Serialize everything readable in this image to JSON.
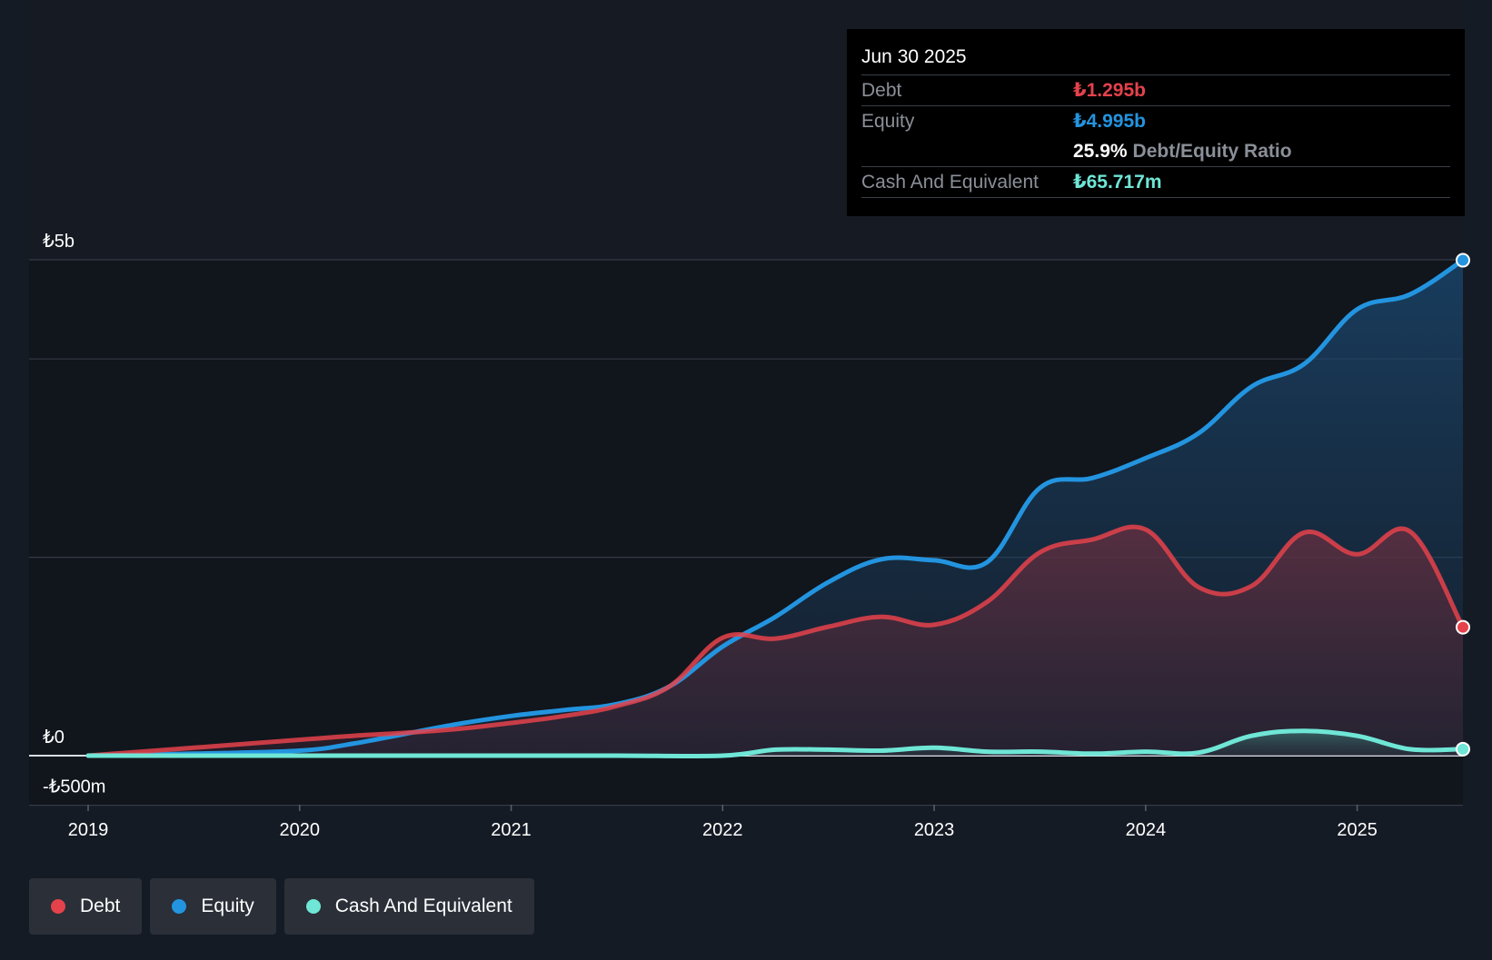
{
  "tooltip": {
    "date": "Jun 30 2025",
    "debt_label": "Debt",
    "debt_value": "₺1.295b",
    "equity_label": "Equity",
    "equity_value": "₺4.995b",
    "ratio_value": "25.9%",
    "ratio_label": "Debt/Equity Ratio",
    "cash_label": "Cash And Equivalent",
    "cash_value": "₺65.717m"
  },
  "legend": {
    "items": [
      {
        "label": "Debt",
        "color": "#e5424b"
      },
      {
        "label": "Equity",
        "color": "#2394df"
      },
      {
        "label": "Cash And Equivalent",
        "color": "#6fe6d6"
      }
    ]
  },
  "colors": {
    "debt": "#e5424b",
    "equity": "#2394df",
    "cash": "#6fe6d6",
    "background": "#151b24"
  },
  "chart_data": {
    "type": "area",
    "title": "",
    "xlabel": "",
    "ylabel": "",
    "x_ticks": [
      "2019",
      "2020",
      "2021",
      "2022",
      "2023",
      "2024",
      "2025"
    ],
    "y_tick_labels": [
      {
        "value": 5,
        "label": "₺5b"
      },
      {
        "value": 0,
        "label": "₺0"
      },
      {
        "value": -0.5,
        "label": "-₺500m"
      }
    ],
    "gridlines_at": [
      5,
      4,
      2,
      0,
      -0.5
    ],
    "ylim": [
      -0.5,
      5
    ],
    "xlim": [
      2019,
      2025.5
    ],
    "unit": "TRY billions",
    "series": [
      {
        "name": "Equity",
        "x": [
          2019.0,
          2019.5,
          2020.0,
          2020.25,
          2020.5,
          2020.75,
          2021.0,
          2021.25,
          2021.5,
          2021.75,
          2022.0,
          2022.25,
          2022.5,
          2022.75,
          2023.0,
          2023.25,
          2023.5,
          2023.75,
          2024.0,
          2024.25,
          2024.5,
          2024.75,
          2025.0,
          2025.25,
          2025.5
        ],
        "values": [
          0.0,
          0.02,
          0.05,
          0.12,
          0.22,
          0.32,
          0.4,
          0.46,
          0.52,
          0.7,
          1.1,
          1.4,
          1.75,
          1.98,
          1.97,
          1.95,
          2.7,
          2.8,
          3.0,
          3.25,
          3.72,
          3.95,
          4.5,
          4.65,
          4.995
        ]
      },
      {
        "name": "Debt",
        "x": [
          2019.0,
          2019.5,
          2020.0,
          2020.25,
          2020.5,
          2020.75,
          2021.0,
          2021.25,
          2021.5,
          2021.75,
          2022.0,
          2022.25,
          2022.5,
          2022.75,
          2023.0,
          2023.25,
          2023.5,
          2023.75,
          2024.0,
          2024.25,
          2024.5,
          2024.75,
          2025.0,
          2025.25,
          2025.5
        ],
        "values": [
          0.0,
          0.08,
          0.16,
          0.2,
          0.23,
          0.27,
          0.33,
          0.4,
          0.5,
          0.7,
          1.19,
          1.18,
          1.3,
          1.4,
          1.32,
          1.55,
          2.05,
          2.18,
          2.28,
          1.7,
          1.71,
          2.25,
          2.03,
          2.26,
          1.295
        ]
      },
      {
        "name": "Cash And Equivalent",
        "x": [
          2019.0,
          2019.5,
          2020.0,
          2020.5,
          2021.0,
          2021.5,
          2022.0,
          2022.25,
          2022.5,
          2022.75,
          2023.0,
          2023.25,
          2023.5,
          2023.75,
          2024.0,
          2024.25,
          2024.5,
          2024.75,
          2025.0,
          2025.25,
          2025.5
        ],
        "values": [
          0.0,
          0.0,
          0.0,
          0.0,
          0.0,
          0.0,
          0.0,
          0.06,
          0.06,
          0.05,
          0.08,
          0.04,
          0.04,
          0.02,
          0.04,
          0.03,
          0.2,
          0.25,
          0.2,
          0.065,
          0.0657
        ]
      }
    ]
  }
}
